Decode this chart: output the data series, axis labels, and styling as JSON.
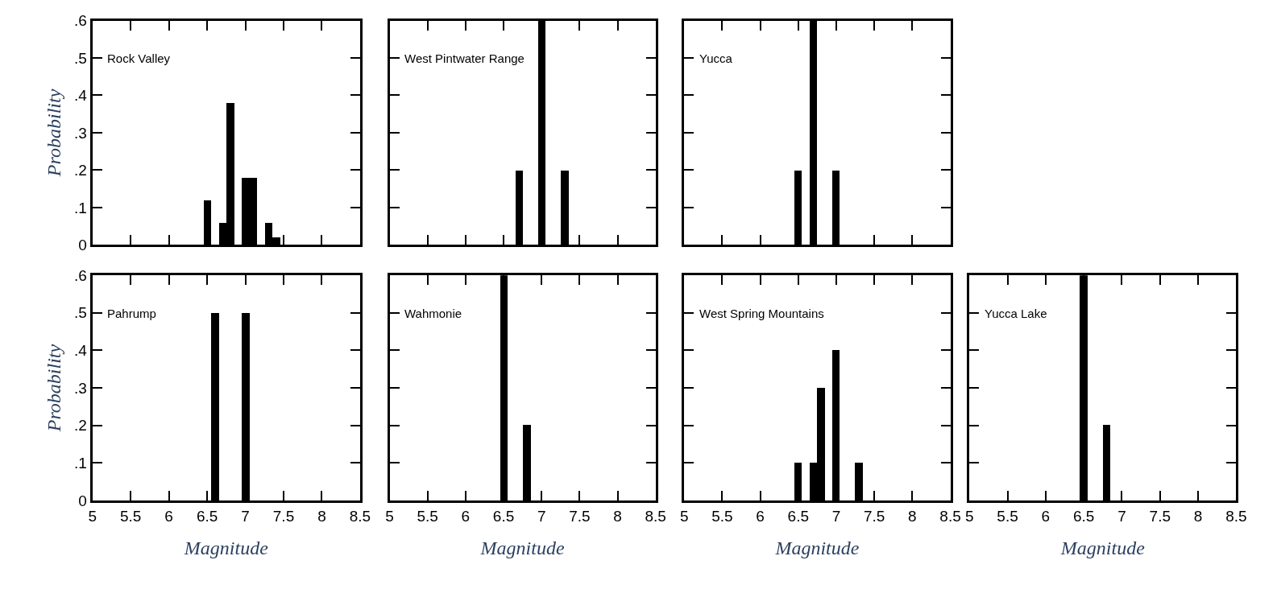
{
  "chart_data": [
    {
      "type": "bar",
      "title": "Rock Valley",
      "ylabel": "Probability",
      "x": [
        6.5,
        6.7,
        6.8,
        7.0,
        7.1,
        7.3,
        7.4
      ],
      "values": [
        0.12,
        0.06,
        0.38,
        0.18,
        0.18,
        0.06,
        0.02
      ],
      "color": "#000000",
      "xlim": [
        5,
        8.5
      ],
      "ylim": [
        0,
        0.6
      ],
      "xticks": [
        5,
        5.5,
        6,
        6.5,
        7,
        7.5,
        8,
        8.5
      ],
      "yticks": [
        0,
        {
          "value": 0.1,
          "label": ".1"
        },
        {
          "value": 0.2,
          "label": ".2"
        },
        {
          "value": 0.3,
          "label": ".3"
        },
        {
          "value": 0.4,
          "label": ".4"
        },
        {
          "value": 0.5,
          "label": ".5"
        },
        {
          "value": 0.6,
          "label": ".6"
        }
      ],
      "tick_labels": "y"
    },
    {
      "type": "bar",
      "title": "West Pintwater Range",
      "x": [
        6.7,
        7.0,
        7.3
      ],
      "values": [
        0.2,
        0.6,
        0.2
      ],
      "color": "#000000",
      "xlim": [
        5,
        8.5
      ],
      "ylim": [
        0,
        0.6
      ],
      "xticks": [
        5,
        5.5,
        6,
        6.5,
        7,
        7.5,
        8,
        8.5
      ],
      "yticks": [
        0,
        {
          "value": 0.1,
          "label": null
        },
        {
          "value": 0.2,
          "label": null
        },
        {
          "value": 0.3,
          "label": null
        },
        {
          "value": 0.4,
          "label": null
        },
        {
          "value": 0.5,
          "label": null
        },
        {
          "value": 0.6,
          "label": null
        }
      ],
      "tick_labels": false
    },
    {
      "type": "bar",
      "title": "Yucca",
      "x": [
        6.5,
        6.7,
        7.0
      ],
      "values": [
        0.2,
        0.6,
        0.2
      ],
      "color": "#000000",
      "xlim": [
        5,
        8.5
      ],
      "ylim": [
        0,
        0.6
      ],
      "xticks": [
        5,
        5.5,
        6,
        6.5,
        7,
        7.5,
        8,
        8.5
      ],
      "yticks": [
        0,
        {
          "value": 0.1,
          "label": null
        },
        {
          "value": 0.2,
          "label": null
        },
        {
          "value": 0.3,
          "label": null
        },
        {
          "value": 0.4,
          "label": null
        },
        {
          "value": 0.5,
          "label": null
        },
        {
          "value": 0.6,
          "label": null
        }
      ],
      "tick_labels": false
    },
    {
      "type": "bar",
      "title": "Pahrump",
      "ylabel": "Probability",
      "xlabel": "Magnitude",
      "x": [
        6.6,
        7.0
      ],
      "values": [
        0.5,
        0.5
      ],
      "color": "#000000",
      "xlim": [
        5,
        8.5
      ],
      "ylim": [
        0,
        0.6
      ],
      "xticks": [
        5,
        5.5,
        6,
        6.5,
        7,
        7.5,
        8,
        8.5
      ],
      "yticks": [
        0,
        {
          "value": 0.1,
          "label": ".1"
        },
        {
          "value": 0.2,
          "label": ".2"
        },
        {
          "value": 0.3,
          "label": ".3"
        },
        {
          "value": 0.4,
          "label": ".4"
        },
        {
          "value": 0.5,
          "label": ".5"
        },
        {
          "value": 0.6,
          "label": ".6"
        }
      ]
    },
    {
      "type": "bar",
      "title": "Wahmonie",
      "xlabel": "Magnitude",
      "x": [
        6.5,
        6.8
      ],
      "values": [
        0.6,
        0.2
      ],
      "color": "#000000",
      "xlim": [
        5,
        8.5
      ],
      "ylim": [
        0,
        0.6
      ],
      "xticks": [
        5,
        5.5,
        6,
        6.5,
        7,
        7.5,
        8,
        8.5
      ],
      "yticks": [
        0,
        {
          "value": 0.1,
          "label": null
        },
        {
          "value": 0.2,
          "label": null
        },
        {
          "value": 0.3,
          "label": null
        },
        {
          "value": 0.4,
          "label": null
        },
        {
          "value": 0.5,
          "label": null
        },
        {
          "value": 0.6,
          "label": null
        }
      ],
      "tick_labels": "x"
    },
    {
      "type": "bar",
      "title": "West Spring Mountains",
      "xlabel": "Magnitude",
      "x": [
        6.5,
        6.7,
        6.8,
        7.0,
        7.3
      ],
      "values": [
        0.1,
        0.1,
        0.3,
        0.4,
        0.1
      ],
      "color": "#000000",
      "xlim": [
        5,
        8.5
      ],
      "ylim": [
        0,
        0.6
      ],
      "xticks": [
        5,
        5.5,
        6,
        6.5,
        7,
        7.5,
        8,
        8.5
      ],
      "yticks": [
        0,
        {
          "value": 0.1,
          "label": null
        },
        {
          "value": 0.2,
          "label": null
        },
        {
          "value": 0.3,
          "label": null
        },
        {
          "value": 0.4,
          "label": null
        },
        {
          "value": 0.5,
          "label": null
        },
        {
          "value": 0.6,
          "label": null
        }
      ],
      "tick_labels": "x"
    },
    {
      "type": "bar",
      "title": "Yucca Lake",
      "xlabel": "Magnitude",
      "x": [
        6.5,
        6.8
      ],
      "values": [
        0.6,
        0.2
      ],
      "color": "#000000",
      "xlim": [
        5,
        8.5
      ],
      "ylim": [
        0,
        0.6
      ],
      "xticks": [
        5,
        5.5,
        6,
        6.5,
        7,
        7.5,
        8,
        8.5
      ],
      "yticks": [
        0,
        {
          "value": 0.1,
          "label": null
        },
        {
          "value": 0.2,
          "label": null
        },
        {
          "value": 0.3,
          "label": null
        },
        {
          "value": 0.4,
          "label": null
        },
        {
          "value": 0.5,
          "label": null
        },
        {
          "value": 0.6,
          "label": null
        }
      ],
      "tick_labels": "x"
    }
  ]
}
